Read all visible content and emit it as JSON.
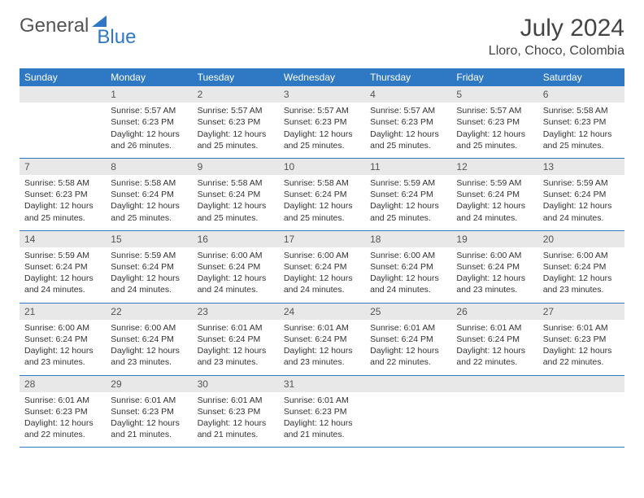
{
  "logo": {
    "word1": "General",
    "word2": "Blue"
  },
  "title": "July 2024",
  "location": "Lloro, Choco, Colombia",
  "colors": {
    "header_bg": "#2f78c4",
    "header_fg": "#ffffff",
    "daynum_bg": "#e8e8e8",
    "row_divider": "#2f78c4",
    "text": "#333333",
    "logo_gray": "#555555",
    "logo_blue": "#2f78c4"
  },
  "weekdays": [
    "Sunday",
    "Monday",
    "Tuesday",
    "Wednesday",
    "Thursday",
    "Friday",
    "Saturday"
  ],
  "start_offset": 1,
  "days": [
    {
      "n": 1,
      "sunrise": "5:57 AM",
      "sunset": "6:23 PM",
      "dayh": 12,
      "daym": 26
    },
    {
      "n": 2,
      "sunrise": "5:57 AM",
      "sunset": "6:23 PM",
      "dayh": 12,
      "daym": 25
    },
    {
      "n": 3,
      "sunrise": "5:57 AM",
      "sunset": "6:23 PM",
      "dayh": 12,
      "daym": 25
    },
    {
      "n": 4,
      "sunrise": "5:57 AM",
      "sunset": "6:23 PM",
      "dayh": 12,
      "daym": 25
    },
    {
      "n": 5,
      "sunrise": "5:57 AM",
      "sunset": "6:23 PM",
      "dayh": 12,
      "daym": 25
    },
    {
      "n": 6,
      "sunrise": "5:58 AM",
      "sunset": "6:23 PM",
      "dayh": 12,
      "daym": 25
    },
    {
      "n": 7,
      "sunrise": "5:58 AM",
      "sunset": "6:23 PM",
      "dayh": 12,
      "daym": 25
    },
    {
      "n": 8,
      "sunrise": "5:58 AM",
      "sunset": "6:24 PM",
      "dayh": 12,
      "daym": 25
    },
    {
      "n": 9,
      "sunrise": "5:58 AM",
      "sunset": "6:24 PM",
      "dayh": 12,
      "daym": 25
    },
    {
      "n": 10,
      "sunrise": "5:58 AM",
      "sunset": "6:24 PM",
      "dayh": 12,
      "daym": 25
    },
    {
      "n": 11,
      "sunrise": "5:59 AM",
      "sunset": "6:24 PM",
      "dayh": 12,
      "daym": 25
    },
    {
      "n": 12,
      "sunrise": "5:59 AM",
      "sunset": "6:24 PM",
      "dayh": 12,
      "daym": 24
    },
    {
      "n": 13,
      "sunrise": "5:59 AM",
      "sunset": "6:24 PM",
      "dayh": 12,
      "daym": 24
    },
    {
      "n": 14,
      "sunrise": "5:59 AM",
      "sunset": "6:24 PM",
      "dayh": 12,
      "daym": 24
    },
    {
      "n": 15,
      "sunrise": "5:59 AM",
      "sunset": "6:24 PM",
      "dayh": 12,
      "daym": 24
    },
    {
      "n": 16,
      "sunrise": "6:00 AM",
      "sunset": "6:24 PM",
      "dayh": 12,
      "daym": 24
    },
    {
      "n": 17,
      "sunrise": "6:00 AM",
      "sunset": "6:24 PM",
      "dayh": 12,
      "daym": 24
    },
    {
      "n": 18,
      "sunrise": "6:00 AM",
      "sunset": "6:24 PM",
      "dayh": 12,
      "daym": 24
    },
    {
      "n": 19,
      "sunrise": "6:00 AM",
      "sunset": "6:24 PM",
      "dayh": 12,
      "daym": 23
    },
    {
      "n": 20,
      "sunrise": "6:00 AM",
      "sunset": "6:24 PM",
      "dayh": 12,
      "daym": 23
    },
    {
      "n": 21,
      "sunrise": "6:00 AM",
      "sunset": "6:24 PM",
      "dayh": 12,
      "daym": 23
    },
    {
      "n": 22,
      "sunrise": "6:00 AM",
      "sunset": "6:24 PM",
      "dayh": 12,
      "daym": 23
    },
    {
      "n": 23,
      "sunrise": "6:01 AM",
      "sunset": "6:24 PM",
      "dayh": 12,
      "daym": 23
    },
    {
      "n": 24,
      "sunrise": "6:01 AM",
      "sunset": "6:24 PM",
      "dayh": 12,
      "daym": 23
    },
    {
      "n": 25,
      "sunrise": "6:01 AM",
      "sunset": "6:24 PM",
      "dayh": 12,
      "daym": 22
    },
    {
      "n": 26,
      "sunrise": "6:01 AM",
      "sunset": "6:24 PM",
      "dayh": 12,
      "daym": 22
    },
    {
      "n": 27,
      "sunrise": "6:01 AM",
      "sunset": "6:23 PM",
      "dayh": 12,
      "daym": 22
    },
    {
      "n": 28,
      "sunrise": "6:01 AM",
      "sunset": "6:23 PM",
      "dayh": 12,
      "daym": 22
    },
    {
      "n": 29,
      "sunrise": "6:01 AM",
      "sunset": "6:23 PM",
      "dayh": 12,
      "daym": 21
    },
    {
      "n": 30,
      "sunrise": "6:01 AM",
      "sunset": "6:23 PM",
      "dayh": 12,
      "daym": 21
    },
    {
      "n": 31,
      "sunrise": "6:01 AM",
      "sunset": "6:23 PM",
      "dayh": 12,
      "daym": 21
    }
  ],
  "labels": {
    "sunrise": "Sunrise:",
    "sunset": "Sunset:",
    "daylight_prefix": "Daylight:",
    "hours_word": "hours",
    "and_word": "and",
    "minutes_word": "minutes."
  }
}
